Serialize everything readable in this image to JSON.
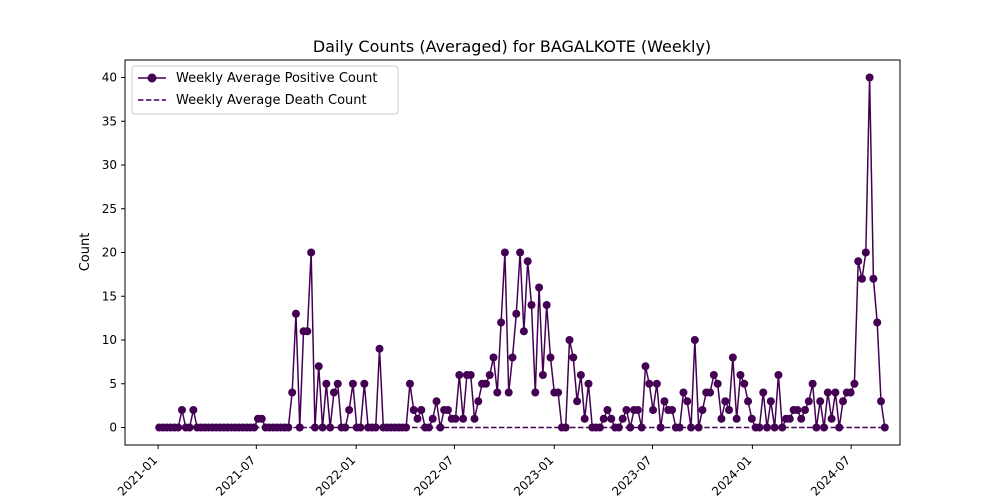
{
  "chart_data": {
    "type": "line",
    "title": "Daily Counts (Averaged) for BAGALKOTE (Weekly)",
    "xlabel": "",
    "ylabel": "Count",
    "ylim": [
      -2,
      42
    ],
    "yticks": [
      0,
      5,
      10,
      15,
      20,
      25,
      30,
      35,
      40
    ],
    "x_start_date": "2021-01-03",
    "x_range": [
      "2020-11-01",
      "2024-09-29"
    ],
    "xticks": [
      {
        "label": "2021-01",
        "date": "2021-01-01"
      },
      {
        "label": "2021-07",
        "date": "2021-07-01"
      },
      {
        "label": "2022-01",
        "date": "2022-01-01"
      },
      {
        "label": "2022-07",
        "date": "2022-07-01"
      },
      {
        "label": "2023-01",
        "date": "2023-01-01"
      },
      {
        "label": "2023-07",
        "date": "2023-07-01"
      },
      {
        "label": "2024-01",
        "date": "2024-01-01"
      },
      {
        "label": "2024-07",
        "date": "2024-07-01"
      }
    ],
    "grid": false,
    "legend_position": "top-left",
    "series": [
      {
        "name": "Weekly Average Positive Count",
        "color": "#440154",
        "style": "solid-marker",
        "values": [
          0,
          0,
          0,
          0,
          0,
          0,
          2,
          0,
          0,
          2,
          0,
          0,
          0,
          0,
          0,
          0,
          0,
          0,
          0,
          0,
          0,
          0,
          0,
          0,
          0,
          0,
          1,
          1,
          0,
          0,
          0,
          0,
          0,
          0,
          0,
          4,
          13,
          0,
          11,
          11,
          20,
          0,
          7,
          0,
          5,
          0,
          4,
          5,
          0,
          0,
          2,
          5,
          0,
          0,
          5,
          0,
          0,
          0,
          9,
          0,
          0,
          0,
          0,
          0,
          0,
          0,
          5,
          2,
          1,
          2,
          0,
          0,
          1,
          3,
          0,
          2,
          2,
          1,
          1,
          6,
          1,
          6,
          6,
          1,
          3,
          5,
          5,
          6,
          8,
          4,
          12,
          20,
          4,
          8,
          13,
          20,
          11,
          19,
          14,
          4,
          16,
          6,
          14,
          8,
          4,
          4,
          0,
          0,
          10,
          8,
          3,
          6,
          1,
          5,
          0,
          0,
          0,
          1,
          2,
          1,
          0,
          0,
          1,
          2,
          0,
          2,
          2,
          0,
          7,
          5,
          2,
          5,
          0,
          3,
          2,
          2,
          0,
          0,
          4,
          3,
          0,
          10,
          0,
          2,
          4,
          4,
          6,
          5,
          1,
          3,
          2,
          8,
          1,
          6,
          5,
          3,
          1,
          0,
          0,
          4,
          0,
          3,
          0,
          6,
          0,
          1,
          1,
          2,
          2,
          1,
          2,
          3,
          5,
          0,
          3,
          0,
          4,
          1,
          4,
          0,
          3,
          4,
          4,
          5,
          19,
          17,
          20,
          40,
          17,
          12,
          3,
          0
        ]
      },
      {
        "name": "Weekly Average Death Count",
        "color": "#440154",
        "style": "dashed",
        "constant_value": 0
      }
    ]
  }
}
